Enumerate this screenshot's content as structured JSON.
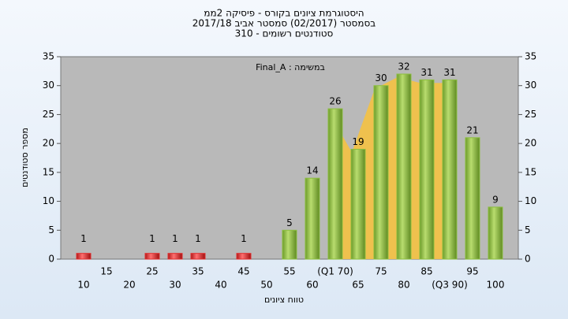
{
  "chart_data": {
    "type": "bar",
    "title": [
      "היסטוגרמת ציונים בקורס - פיסיקה 2ממ",
      "בסמסטר  (02/2017)  סמסטר אביב 2017/18",
      "סטודנטים רשומים - 310"
    ],
    "annotation": "במשימה : Final_A",
    "x_label": "טווח ציונים",
    "y_label": "מספר סטודנטים",
    "categories": [
      "10",
      "15",
      "20",
      "25",
      "30",
      "35",
      "40",
      "45",
      "50",
      "55",
      "60",
      "(Q1 70)",
      "65",
      "75",
      "80",
      "85",
      "(Q3 90)",
      "95",
      "100"
    ],
    "values": [
      1,
      0,
      0,
      1,
      1,
      1,
      0,
      1,
      0,
      5,
      14,
      26,
      19,
      30,
      32,
      31,
      31,
      21,
      9
    ],
    "colors": [
      "#e03030",
      "#e03030",
      "#e03030",
      "#e03030",
      "#e03030",
      "#e03030",
      "#e03030",
      "#e03030",
      "#e03030",
      "#8cbf3f",
      "#8cbf3f",
      "#8cbf3f",
      "#8cbf3f",
      "#8cbf3f",
      "#8cbf3f",
      "#8cbf3f",
      "#8cbf3f",
      "#8cbf3f",
      "#8cbf3f"
    ],
    "ylim": [
      0,
      35
    ],
    "yticks": [
      0,
      5,
      10,
      15,
      20,
      25,
      30,
      35
    ],
    "y2ticks": [
      0,
      5,
      10,
      15,
      20,
      25,
      30,
      35
    ],
    "grid": false
  }
}
